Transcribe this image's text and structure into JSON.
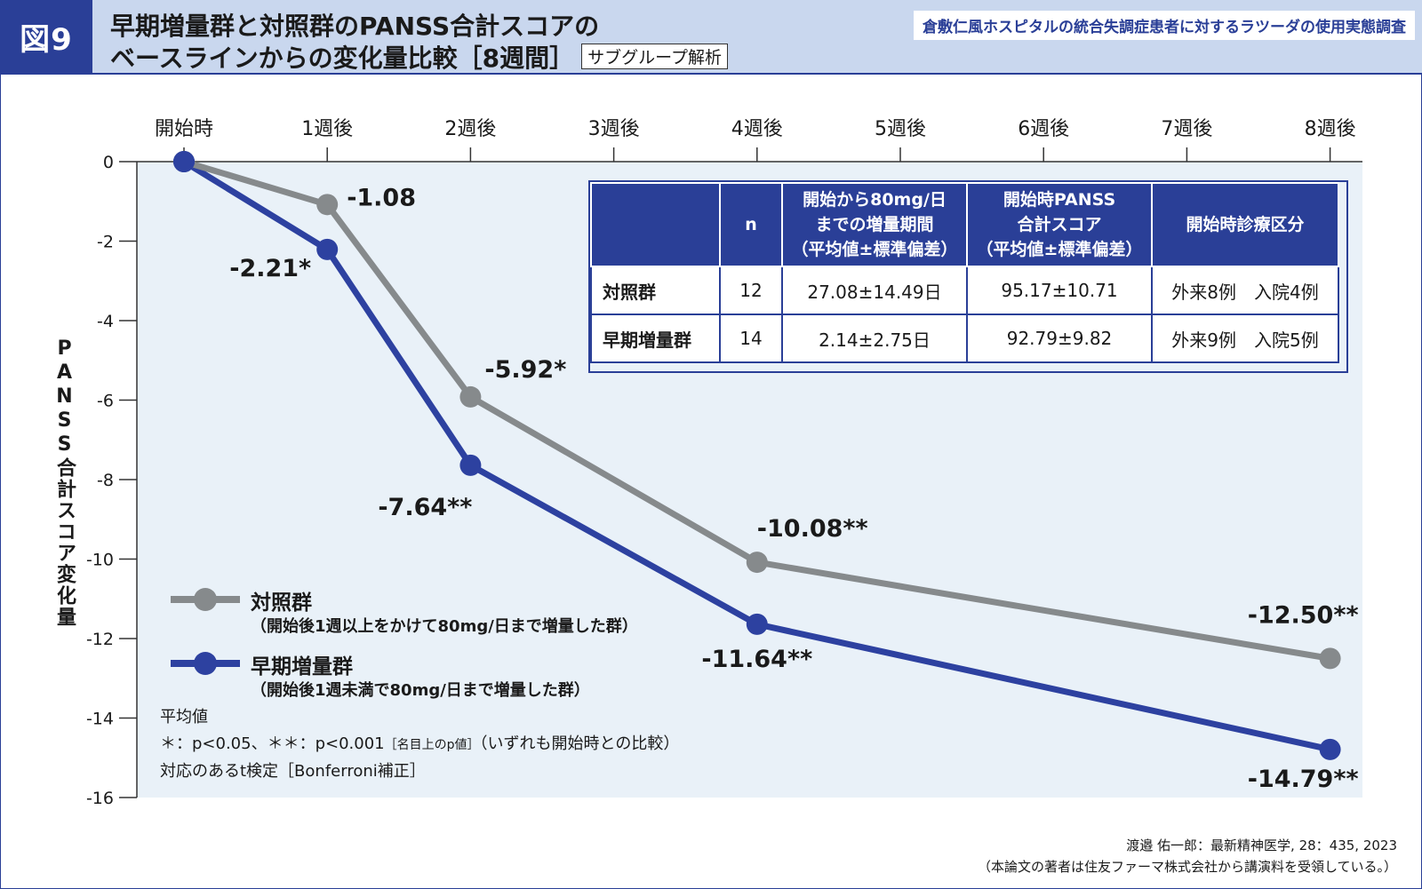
{
  "header": {
    "figure_number": "図9",
    "title_line1": "早期増量群と対照群のPANSS合計スコアの",
    "title_line2": "ベースラインからの変化量比較［8週間］",
    "subgroup_tag": "サブグループ解析",
    "source_tag": "倉敷仁風ホスピタルの統合失調症患者に対するラツーダの使用実態調査"
  },
  "colors": {
    "control": "#868a8c",
    "early": "#2d41a0",
    "accent": "#2a3f97",
    "plot_bg": "#e9f1f8"
  },
  "chart_data": {
    "type": "line",
    "categories": [
      "開始時",
      "1週後",
      "2週後",
      "3週後",
      "4週後",
      "5週後",
      "6週後",
      "7週後",
      "8週後"
    ],
    "ylabel": "PANSS合計スコア変化量",
    "ylim": [
      -16,
      0
    ],
    "yticks": [
      "0",
      "-2",
      "-4",
      "-6",
      "-8",
      "-10",
      "-12",
      "-14",
      "-16"
    ],
    "series": [
      {
        "name": "対照群",
        "points": [
          [
            0,
            0
          ],
          [
            1,
            -1.08
          ],
          [
            2,
            -5.92
          ],
          [
            4,
            -10.08
          ],
          [
            8,
            -12.5
          ]
        ],
        "labels": [
          "",
          "-1.08",
          "-5.92*",
          "-10.08**",
          "-12.50**"
        ]
      },
      {
        "name": "早期増量群",
        "points": [
          [
            0,
            0
          ],
          [
            1,
            -2.21
          ],
          [
            2,
            -7.64
          ],
          [
            4,
            -11.64
          ],
          [
            8,
            -14.79
          ]
        ],
        "labels": [
          "",
          "-2.21*",
          "-7.64**",
          "-11.64**",
          "-14.79**"
        ]
      }
    ]
  },
  "table": {
    "headers": [
      "",
      "n",
      "開始から80mg/日までの増量期間（平均値±標準偏差）",
      "開始時PANSS合計スコア（平均値±標準偏差）",
      "開始時診療区分"
    ],
    "header_lines": {
      "c2": [
        "開始から80mg/日",
        "までの増量期間",
        "（平均値±標準偏差）"
      ],
      "c3": [
        "開始時PANSS",
        "合計スコア",
        "（平均値±標準偏差）"
      ]
    },
    "rows": [
      {
        "group": "対照群",
        "n": "12",
        "period": "27.08±14.49日",
        "panss": "95.17±10.71",
        "category": "外来8例　入院4例"
      },
      {
        "group": "早期増量群",
        "n": "14",
        "period": "2.14±2.75日",
        "panss": "92.79±9.82",
        "category": "外来9例　入院5例"
      }
    ]
  },
  "legend": {
    "control_name": "対照群",
    "control_desc": "（開始後1週以上をかけて80mg/日まで増量した群）",
    "early_name": "早期増量群",
    "early_desc": "（開始後1週未満で80mg/日まで増量した群）"
  },
  "notes": {
    "line1": "平均値",
    "line2a": "＊：p<0.05、＊＊：p<0.001",
    "line2b": "［名目上のp値］",
    "line2c": "（いずれも開始時との比較）",
    "line3": "対応のあるt検定［Bonferroni補正］"
  },
  "citation": {
    "line1": "渡邉 佑一郎：最新精神医学, 28：435, 2023",
    "line2": "（本論文の著者は住友ファーマ株式会社から講演料を受領している。）"
  }
}
